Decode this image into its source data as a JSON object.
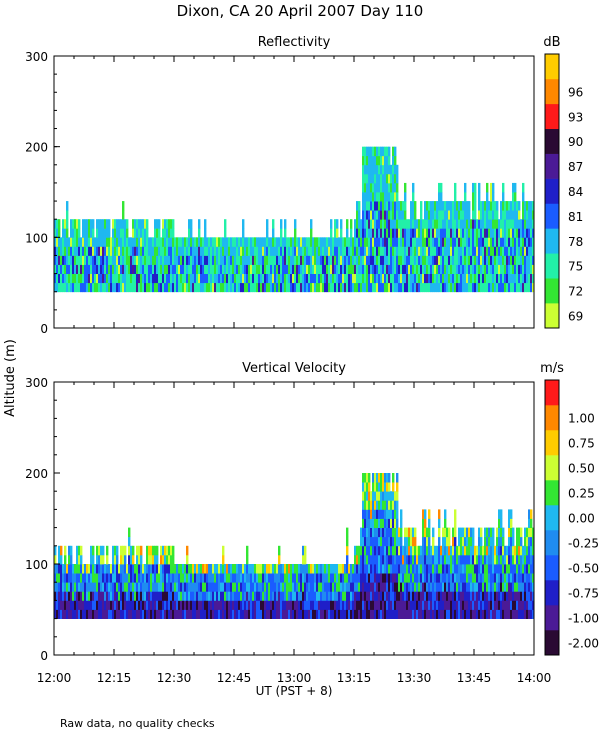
{
  "title": "Dixon, CA 20 April 2007  Day 110",
  "shared_ylabel": "Altitude (m)",
  "xlabel": "UT  (PST + 8)",
  "footnote": "Raw data, no quality checks",
  "colors": {
    "reflectivity": [
      "#ccff33",
      "#33e633",
      "#22f0a8",
      "#1fb8f0",
      "#1a5cff",
      "#1f1fc8",
      "#4b1a96",
      "#2a0a33",
      "#ff1a1a",
      "#ff8800",
      "#ffcc00"
    ],
    "velocity": [
      "#2a0a33",
      "#4b1a96",
      "#1f1fc8",
      "#1a5cff",
      "#1f8cf0",
      "#1fb8f0",
      "#33e633",
      "#ccff33",
      "#ffcc00",
      "#ff8800",
      "#ff1a1a"
    ]
  },
  "chart_data": [
    {
      "type": "heatmap",
      "title": "Reflectivity",
      "ylabel": "Altitude (m)",
      "xlabel": "UT  (PST + 8)",
      "x_ticks": [
        "12:00",
        "12:15",
        "12:30",
        "12:45",
        "13:00",
        "13:15",
        "13:30",
        "13:45",
        "14:00"
      ],
      "x_range_minutes": [
        0,
        120
      ],
      "y_ticks": [
        0,
        100,
        200,
        300
      ],
      "ylim": [
        0,
        300
      ],
      "colorbar": {
        "unit": "dB",
        "labels": [
          "69",
          "72",
          "75",
          "78",
          "81",
          "84",
          "87",
          "90",
          "93",
          "96"
        ]
      },
      "data_coverage": {
        "altitude_base_m": 40,
        "typical_top_m": [
          100,
          140
        ],
        "max_top_m": 200,
        "max_top_time": "13:17-13:21"
      }
    },
    {
      "type": "heatmap",
      "title": "Vertical Velocity",
      "ylabel": "Altitude (m)",
      "xlabel": "UT  (PST + 8)",
      "x_ticks": [
        "12:00",
        "12:15",
        "12:30",
        "12:45",
        "13:00",
        "13:15",
        "13:30",
        "13:45",
        "14:00"
      ],
      "x_range_minutes": [
        0,
        120
      ],
      "y_ticks": [
        0,
        100,
        200,
        300
      ],
      "ylim": [
        0,
        300
      ],
      "colorbar": {
        "unit": "m/s",
        "labels": [
          "-2.00",
          "-1.00",
          "-0.75",
          "-0.50",
          "-0.25",
          "0.00",
          "0.25",
          "0.50",
          "0.75",
          "1.00"
        ]
      },
      "data_coverage": {
        "altitude_base_m": 40,
        "typical_top_m": [
          100,
          140
        ],
        "max_top_m": 200,
        "max_top_time": "13:17-13:21"
      }
    }
  ]
}
